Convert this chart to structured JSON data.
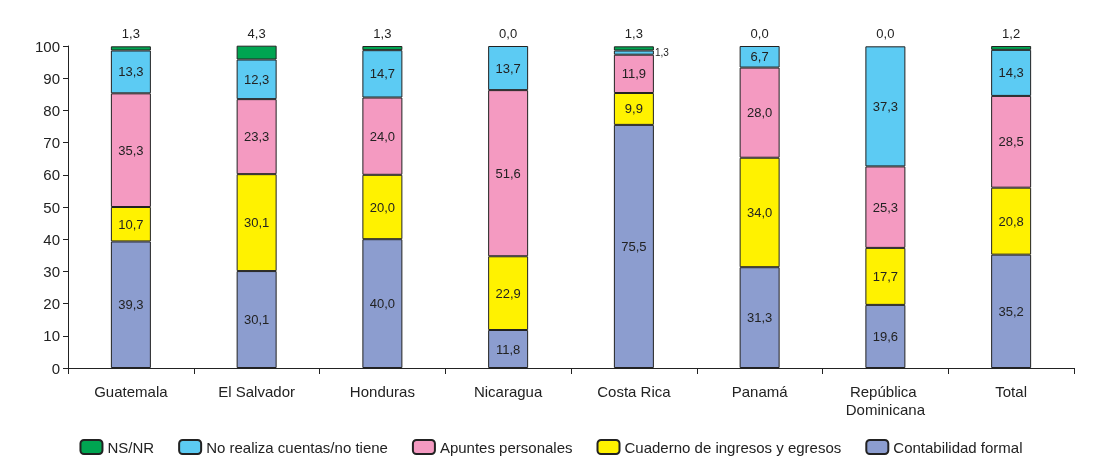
{
  "chart_data": {
    "type": "bar",
    "stacked": true,
    "categories": [
      "Guatemala",
      "El Salvador",
      "Honduras",
      "Nicaragua",
      "Costa Rica",
      "Panamá",
      "República Dominicana",
      "Total"
    ],
    "ylim": [
      0,
      100
    ],
    "yticks": [
      0,
      10,
      20,
      30,
      40,
      50,
      60,
      70,
      80,
      90,
      100
    ],
    "grid": false,
    "legend": "bottom",
    "series": [
      {
        "name": "Contabilidad formal",
        "color": "#8c9dcf",
        "values": [
          39.3,
          30.1,
          40.0,
          11.8,
          75.5,
          31.3,
          19.6,
          35.2
        ],
        "value_labels": [
          "39,3",
          "30,1",
          "40,0",
          "11,8",
          "75,5",
          "31,3",
          "19,6",
          "35,2"
        ]
      },
      {
        "name": "Cuaderno de ingresos y egresos",
        "color": "#fff200",
        "values": [
          10.7,
          30.1,
          20.0,
          22.9,
          9.9,
          34.0,
          17.7,
          20.8
        ],
        "value_labels": [
          "10,7",
          "30,1",
          "20,0",
          "22,9",
          "9,9",
          "34,0",
          "17,7",
          "20,8"
        ]
      },
      {
        "name": "Apuntes personales",
        "color": "#f49ac1",
        "values": [
          35.3,
          23.3,
          24.0,
          51.6,
          11.9,
          28.0,
          25.3,
          28.5
        ],
        "value_labels": [
          "35,3",
          "23,3",
          "24,0",
          "51,6",
          "11,9",
          "28,0",
          "25,3",
          "28,5"
        ]
      },
      {
        "name": "No realiza cuentas/no tiene",
        "color": "#5ccbf3",
        "values": [
          13.3,
          12.3,
          14.7,
          13.7,
          1.3,
          6.7,
          37.3,
          14.3
        ],
        "value_labels": [
          "13,3",
          "12,3",
          "14,7",
          "13,7",
          "1,3",
          "6,7",
          "37,3",
          "14,3"
        ]
      },
      {
        "name": "NS/NR",
        "color": "#00a551",
        "values": [
          1.3,
          4.3,
          1.3,
          0.0,
          1.3,
          0.0,
          0.0,
          1.2
        ],
        "value_labels": [
          "1,3",
          "4,3",
          "1,3",
          "0,0",
          "1,3",
          "0,0",
          "0,0",
          "1,2"
        ]
      }
    ]
  }
}
